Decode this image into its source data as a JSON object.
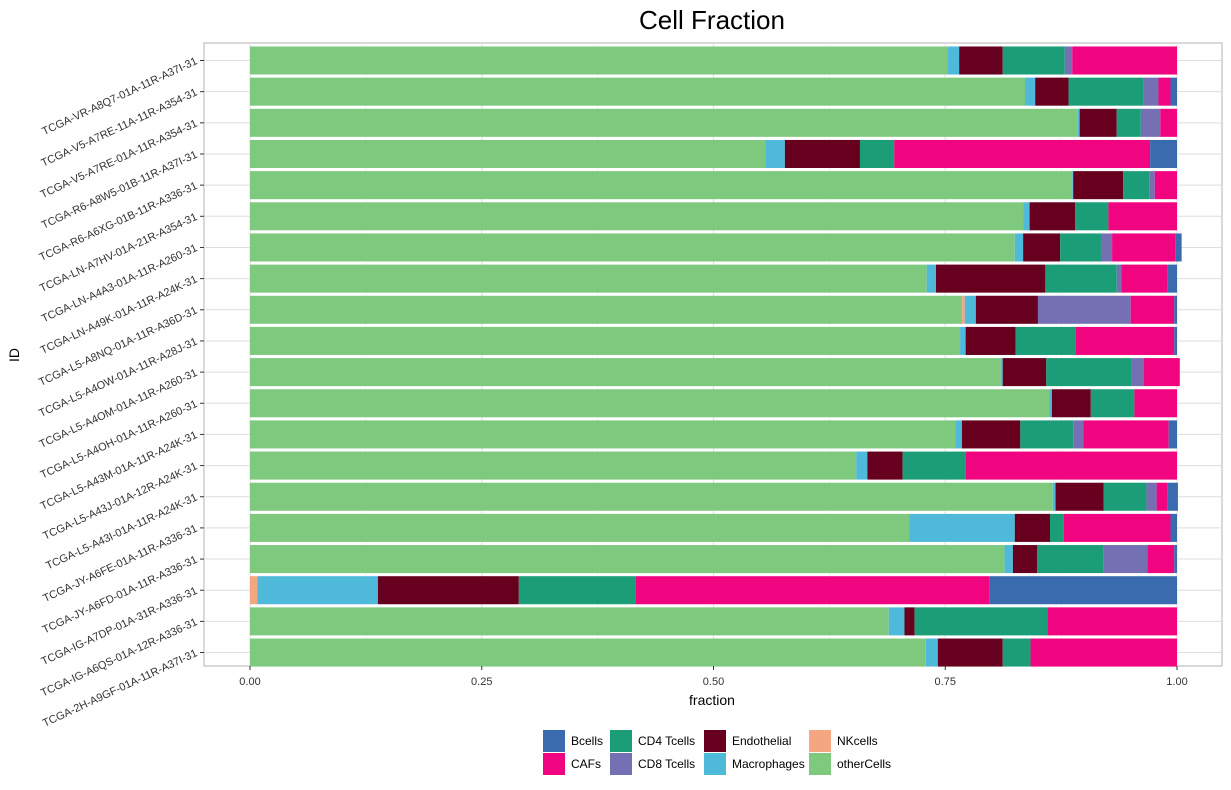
{
  "chart_data": {
    "type": "bar",
    "orientation": "horizontal",
    "stacked": true,
    "title": "Cell Fraction",
    "xlabel": "fraction",
    "ylabel": "ID",
    "xlim": [
      0,
      1
    ],
    "x_ticks": [
      "0.00",
      "0.25",
      "0.50",
      "0.75",
      "1.00"
    ],
    "grid": true,
    "legend_position": "bottom",
    "stack_order": [
      "otherCells",
      "NKcells",
      "Macrophages",
      "Endothelial",
      "CD4 Tcells",
      "CD8 Tcells",
      "CAFs",
      "Bcells"
    ],
    "legend": [
      {
        "name": "Bcells",
        "color": "#3A6BAE"
      },
      {
        "name": "CAFs",
        "color": "#F0047F"
      },
      {
        "name": "CD4 Tcells",
        "color": "#1B9E77"
      },
      {
        "name": "CD8 Tcells",
        "color": "#7570B3"
      },
      {
        "name": "Endothelial",
        "color": "#67001F"
      },
      {
        "name": "Macrophages",
        "color": "#4EB9D8"
      },
      {
        "name": "NKcells",
        "color": "#F4A582"
      },
      {
        "name": "otherCells",
        "color": "#7FC97F"
      }
    ],
    "samples": [
      {
        "id": "TCGA-VR-A8Q7-01A-11R-A37I-31",
        "otherCells": 0.753,
        "NKcells": 0.0,
        "Macrophages": 0.012,
        "Endothelial": 0.047,
        "CD4 Tcells": 0.067,
        "CD8 Tcells": 0.008,
        "CAFs": 0.113,
        "Bcells": 0.0
      },
      {
        "id": "TCGA-V5-A7RE-11A-11R-A354-31",
        "otherCells": 0.836,
        "NKcells": 0.0,
        "Macrophages": 0.011,
        "Endothelial": 0.036,
        "CD4 Tcells": 0.081,
        "CD8 Tcells": 0.016,
        "CAFs": 0.013,
        "Bcells": 0.007
      },
      {
        "id": "TCGA-V5-A7RE-01A-11R-A354-31",
        "otherCells": 0.893,
        "NKcells": 0.0,
        "Macrophages": 0.002,
        "Endothelial": 0.04,
        "CD4 Tcells": 0.026,
        "CD8 Tcells": 0.021,
        "CAFs": 0.018,
        "Bcells": 0.0
      },
      {
        "id": "TCGA-R6-A8W5-01B-11R-A37I-31",
        "otherCells": 0.556,
        "NKcells": 0.0,
        "Macrophages": 0.021,
        "Endothelial": 0.081,
        "CD4 Tcells": 0.037,
        "CD8 Tcells": 0.0,
        "CAFs": 0.276,
        "Bcells": 0.029
      },
      {
        "id": "TCGA-R6-A6XG-01B-11R-A336-31",
        "otherCells": 0.887,
        "NKcells": 0.0,
        "Macrophages": 0.001,
        "Endothelial": 0.054,
        "CD4 Tcells": 0.028,
        "CD8 Tcells": 0.006,
        "CAFs": 0.024,
        "Bcells": 0.0
      },
      {
        "id": "TCGA-LN-A7HV-01A-21R-A354-31",
        "otherCells": 0.834,
        "NKcells": 0.0,
        "Macrophages": 0.007,
        "Endothelial": 0.049,
        "CD4 Tcells": 0.036,
        "CD8 Tcells": 0.0,
        "CAFs": 0.074,
        "Bcells": 0.0
      },
      {
        "id": "TCGA-LN-A4A3-01A-11R-A260-31",
        "otherCells": 0.825,
        "NKcells": 0.0,
        "Macrophages": 0.009,
        "Endothelial": 0.04,
        "CD4 Tcells": 0.044,
        "CD8 Tcells": 0.012,
        "CAFs": 0.068,
        "Bcells": 0.007
      },
      {
        "id": "TCGA-LN-A49K-01A-11R-A24K-31",
        "otherCells": 0.73,
        "NKcells": 0.0,
        "Macrophages": 0.01,
        "Endothelial": 0.118,
        "CD4 Tcells": 0.077,
        "CD8 Tcells": 0.005,
        "CAFs": 0.05,
        "Bcells": 0.01
      },
      {
        "id": "TCGA-L5-A8NQ-01A-11R-A36D-31",
        "otherCells": 0.768,
        "NKcells": 0.003,
        "Macrophages": 0.012,
        "Endothelial": 0.067,
        "CD4 Tcells": 0.0,
        "CD8 Tcells": 0.1,
        "CAFs": 0.047,
        "Bcells": 0.003
      },
      {
        "id": "TCGA-L5-A4OW-01A-11R-A28J-31",
        "otherCells": 0.766,
        "NKcells": 0.0,
        "Macrophages": 0.006,
        "Endothelial": 0.054,
        "CD4 Tcells": 0.065,
        "CD8 Tcells": 0.0,
        "CAFs": 0.106,
        "Bcells": 0.003
      },
      {
        "id": "TCGA-L5-A4OM-01A-11R-A260-31",
        "otherCells": 0.81,
        "NKcells": 0.0,
        "Macrophages": 0.002,
        "Endothelial": 0.047,
        "CD4 Tcells": 0.092,
        "CD8 Tcells": 0.013,
        "CAFs": 0.039,
        "Bcells": 0.0
      },
      {
        "id": "TCGA-L5-A4OH-01A-11R-A260-31",
        "otherCells": 0.862,
        "NKcells": 0.0,
        "Macrophages": 0.003,
        "Endothelial": 0.042,
        "CD4 Tcells": 0.047,
        "CD8 Tcells": 0.0,
        "CAFs": 0.046,
        "Bcells": 0.0
      },
      {
        "id": "TCGA-L5-A43M-01A-11R-A24K-31",
        "otherCells": 0.761,
        "NKcells": 0.0,
        "Macrophages": 0.007,
        "Endothelial": 0.063,
        "CD4 Tcells": 0.057,
        "CD8 Tcells": 0.011,
        "CAFs": 0.092,
        "Bcells": 0.009
      },
      {
        "id": "TCGA-L5-A43J-01A-12R-A24K-31",
        "otherCells": 0.654,
        "NKcells": 0.0,
        "Macrophages": 0.012,
        "Endothelial": 0.038,
        "CD4 Tcells": 0.068,
        "CD8 Tcells": 0.0,
        "CAFs": 0.228,
        "Bcells": 0.0
      },
      {
        "id": "TCGA-L5-A43I-01A-11R-A24K-31",
        "otherCells": 0.866,
        "NKcells": 0.0,
        "Macrophages": 0.003,
        "Endothelial": 0.052,
        "CD4 Tcells": 0.046,
        "CD8 Tcells": 0.011,
        "CAFs": 0.012,
        "Bcells": 0.011
      },
      {
        "id": "TCGA-JY-A6FE-01A-11R-A336-31",
        "otherCells": 0.711,
        "NKcells": 0.0,
        "Macrophages": 0.114,
        "Endothelial": 0.038,
        "CD4 Tcells": 0.015,
        "CD8 Tcells": 0.0,
        "CAFs": 0.115,
        "Bcells": 0.007
      },
      {
        "id": "TCGA-JY-A6FD-01A-11R-A336-31",
        "otherCells": 0.814,
        "NKcells": 0.0,
        "Macrophages": 0.009,
        "Endothelial": 0.026,
        "CD4 Tcells": 0.072,
        "CD8 Tcells": 0.047,
        "CAFs": 0.029,
        "Bcells": 0.003
      },
      {
        "id": "TCGA-IG-A7DP-01A-31R-A336-31",
        "otherCells": 0.0,
        "NKcells": 0.008,
        "Macrophages": 0.13,
        "Endothelial": 0.152,
        "CD4 Tcells": 0.126,
        "CD8 Tcells": 0.0,
        "CAFs": 0.382,
        "Bcells": 0.202
      },
      {
        "id": "TCGA-IG-A6QS-01A-12R-A336-31",
        "otherCells": 0.689,
        "NKcells": 0.0,
        "Macrophages": 0.017,
        "Endothelial": 0.011,
        "CD4 Tcells": 0.143,
        "CD8 Tcells": 0.0,
        "CAFs": 0.14,
        "Bcells": 0.0
      },
      {
        "id": "TCGA-2H-A9GF-01A-11R-A37I-31",
        "otherCells": 0.729,
        "NKcells": 0.0,
        "Macrophages": 0.013,
        "Endothelial": 0.07,
        "CD4 Tcells": 0.03,
        "CD8 Tcells": 0.0,
        "CAFs": 0.158,
        "Bcells": 0.0
      }
    ]
  }
}
